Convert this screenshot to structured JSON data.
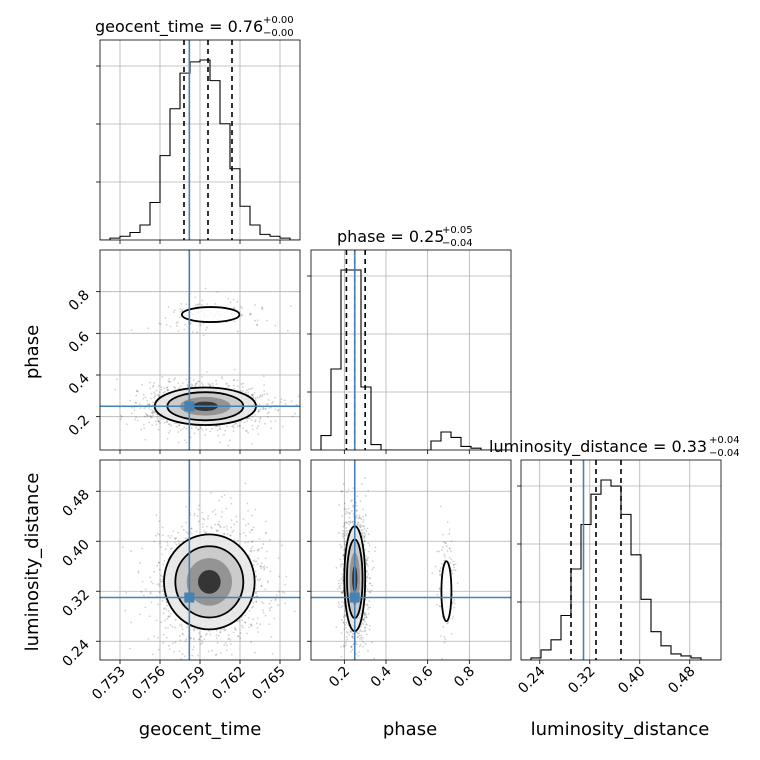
{
  "chart_data": {
    "type": "corner",
    "parameters": [
      "geocent_time",
      "phase",
      "luminosity_distance"
    ],
    "truth_color": "#4682b4",
    "truths": {
      "geocent_time": 0.7582,
      "phase": 0.25,
      "luminosity_distance": 0.31
    },
    "grid": true,
    "ranges": {
      "geocent_time": [
        0.7515,
        0.7665
      ],
      "phase": [
        0.04,
        1.0
      ],
      "luminosity_distance": [
        0.21,
        0.53
      ]
    },
    "ticks": {
      "geocent_time": [
        "0.753",
        "0.756",
        "0.759",
        "0.762",
        "0.765"
      ],
      "phase": [
        "0.2",
        "0.4",
        "0.6",
        "0.8"
      ],
      "luminosity_distance": [
        "0.24",
        "0.32",
        "0.40",
        "0.48"
      ]
    },
    "titles": {
      "geocent_time": {
        "main": "geocent_time = 0.76",
        "upper": "+0.00",
        "lower": "−0.00"
      },
      "phase": {
        "main": "phase = 0.25",
        "upper": "+0.05",
        "lower": "−0.04"
      },
      "luminosity_distance": {
        "main": "luminosity_distance = 0.33",
        "upper": "+0.04",
        "lower": "−0.04"
      }
    },
    "quantiles": {
      "geocent_time": [
        0.7578,
        0.7596,
        0.7614
      ],
      "phase": [
        0.21,
        0.25,
        0.3
      ],
      "luminosity_distance": [
        0.29,
        0.33,
        0.37
      ]
    },
    "histograms": {
      "geocent_time": {
        "edges_start": 0.7515,
        "bin_width": 0.00075,
        "counts": [
          0,
          1,
          2,
          4,
          8,
          20,
          45,
          70,
          89,
          95,
          96,
          85,
          62,
          38,
          18,
          8,
          3,
          2,
          1,
          0
        ]
      },
      "phase": {
        "edges_start": 0.04,
        "bin_width": 0.048,
        "counts": [
          0,
          8,
          45,
          100,
          100,
          35,
          3,
          0,
          0,
          0,
          0,
          0,
          5,
          10,
          7,
          2,
          1,
          0,
          0,
          0
        ]
      },
      "luminosity_distance": {
        "edges_start": 0.21,
        "bin_width": 0.016,
        "counts": [
          0,
          1,
          5,
          10,
          22,
          45,
          67,
          82,
          89,
          86,
          72,
          52,
          30,
          14,
          7,
          3,
          2,
          1,
          0,
          0
        ]
      }
    },
    "modes_2d": [
      {
        "x": "geocent_time",
        "y": "phase",
        "center": [
          0.7594,
          0.25
        ],
        "sd": [
          0.0019,
          0.045
        ],
        "weight": 0.9
      },
      {
        "x": "geocent_time",
        "y": "phase",
        "center": [
          0.7598,
          0.69
        ],
        "sd": [
          0.0018,
          0.03
        ],
        "weight": 0.1
      },
      {
        "x": "geocent_time",
        "y": "luminosity_distance",
        "center": [
          0.7597,
          0.335
        ],
        "sd": [
          0.0017,
          0.038
        ],
        "weight": 1.0
      },
      {
        "x": "phase",
        "y": "luminosity_distance",
        "center": [
          0.25,
          0.34
        ],
        "sd": [
          0.025,
          0.042
        ],
        "weight": 0.9
      },
      {
        "x": "phase",
        "y": "luminosity_distance",
        "center": [
          0.69,
          0.32
        ],
        "sd": [
          0.02,
          0.04
        ],
        "weight": 0.1
      }
    ]
  }
}
